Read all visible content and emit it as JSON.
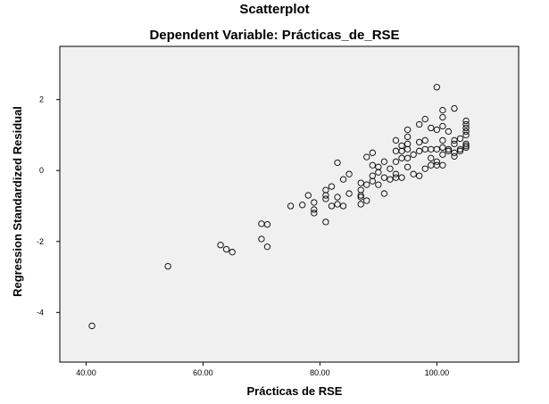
{
  "chart_data": {
    "type": "scatter",
    "title": "Scatterplot",
    "subtitle": "Dependent Variable: Prácticas_de_RSE",
    "xlabel": "Prácticas  de  RSE",
    "ylabel": "Regression Standardized Residual",
    "xlim": [
      35.5,
      114
    ],
    "ylim": [
      -5.4,
      3.5
    ],
    "x_ticks": [
      {
        "value": 40,
        "label": "40.00"
      },
      {
        "value": 60,
        "label": "60.00"
      },
      {
        "value": 80,
        "label": "80.00"
      },
      {
        "value": 100,
        "label": "100.00"
      }
    ],
    "y_ticks": [
      {
        "value": 2,
        "label": "2"
      },
      {
        "value": 0,
        "label": "0"
      },
      {
        "value": -2,
        "label": "-2"
      },
      {
        "value": -4,
        "label": "-4"
      }
    ],
    "plot_background": "#f0f0f0",
    "marker_color": "#000000",
    "grid": false,
    "points": [
      [
        41,
        -4.38
      ],
      [
        54,
        -2.7
      ],
      [
        63,
        -2.1
      ],
      [
        64,
        -2.22
      ],
      [
        65,
        -2.3
      ],
      [
        70,
        -1.5
      ],
      [
        70,
        -1.93
      ],
      [
        71,
        -1.52
      ],
      [
        71,
        -2.15
      ],
      [
        75,
        -1.0
      ],
      [
        77,
        -0.97
      ],
      [
        78,
        -0.7
      ],
      [
        79,
        -0.9
      ],
      [
        79,
        -1.1
      ],
      [
        79,
        -1.2
      ],
      [
        81,
        -0.55
      ],
      [
        81,
        -0.7
      ],
      [
        81,
        -0.8
      ],
      [
        81,
        -1.45
      ],
      [
        82,
        -0.45
      ],
      [
        82,
        -1.0
      ],
      [
        83,
        -0.75
      ],
      [
        83,
        -0.95
      ],
      [
        83,
        0.22
      ],
      [
        84,
        -0.25
      ],
      [
        84,
        -1.0
      ],
      [
        85,
        -0.1
      ],
      [
        85,
        -0.65
      ],
      [
        87,
        -0.35
      ],
      [
        87,
        -0.55
      ],
      [
        87,
        -0.7
      ],
      [
        87,
        -0.75
      ],
      [
        87,
        -0.95
      ],
      [
        88,
        -0.4
      ],
      [
        88,
        -0.85
      ],
      [
        88,
        0.38
      ],
      [
        89,
        -0.3
      ],
      [
        89,
        -0.15
      ],
      [
        89,
        0.15
      ],
      [
        89,
        0.5
      ],
      [
        90,
        -0.05
      ],
      [
        90,
        -0.4
      ],
      [
        90,
        0.1
      ],
      [
        91,
        -0.2
      ],
      [
        91,
        -0.65
      ],
      [
        91,
        0.25
      ],
      [
        92,
        0.05
      ],
      [
        92,
        -0.25
      ],
      [
        93,
        0.25
      ],
      [
        93,
        0.55
      ],
      [
        93,
        -0.1
      ],
      [
        93,
        0.85
      ],
      [
        93,
        -0.2
      ],
      [
        94,
        0.35
      ],
      [
        94,
        0.7
      ],
      [
        94,
        0.55
      ],
      [
        94,
        -0.2
      ],
      [
        95,
        0.6
      ],
      [
        95,
        0.75
      ],
      [
        95,
        0.95
      ],
      [
        95,
        1.15
      ],
      [
        95,
        0.35
      ],
      [
        95,
        0.1
      ],
      [
        96,
        -0.1
      ],
      [
        96,
        0.45
      ],
      [
        97,
        0.8
      ],
      [
        97,
        0.55
      ],
      [
        97,
        -0.15
      ],
      [
        97,
        1.3
      ],
      [
        98,
        1.45
      ],
      [
        98,
        0.85
      ],
      [
        98,
        0.6
      ],
      [
        98,
        0.05
      ],
      [
        99,
        0.15
      ],
      [
        99,
        0.6
      ],
      [
        99,
        0.35
      ],
      [
        99,
        1.2
      ],
      [
        100,
        0.25
      ],
      [
        100,
        0.15
      ],
      [
        100,
        0.6
      ],
      [
        100,
        1.15
      ],
      [
        100,
        2.35
      ],
      [
        101,
        1.25
      ],
      [
        101,
        1.5
      ],
      [
        101,
        1.7
      ],
      [
        101,
        0.85
      ],
      [
        101,
        0.45
      ],
      [
        101,
        0.15
      ],
      [
        101,
        0.65
      ],
      [
        102,
        0.6
      ],
      [
        102,
        1.1
      ],
      [
        102,
        0.55
      ],
      [
        103,
        0.5
      ],
      [
        103,
        0.85
      ],
      [
        103,
        1.75
      ],
      [
        103,
        0.75
      ],
      [
        103,
        0.4
      ],
      [
        104,
        0.6
      ],
      [
        104,
        0.9
      ],
      [
        104,
        0.55
      ],
      [
        105,
        0.65
      ],
      [
        105,
        0.75
      ],
      [
        105,
        1.0
      ],
      [
        105,
        1.2
      ],
      [
        105,
        1.4
      ],
      [
        105,
        1.3
      ],
      [
        105,
        1.1
      ],
      [
        105,
        0.7
      ]
    ]
  }
}
